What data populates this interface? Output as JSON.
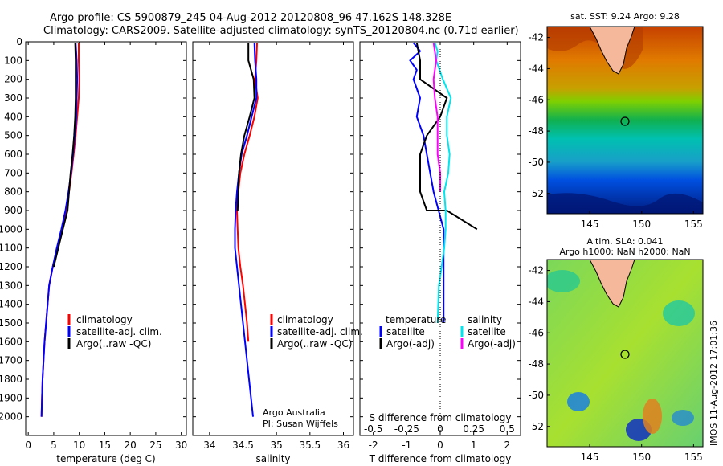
{
  "header": {
    "title1": "Argo profile: CS 5900879_245 04-Aug-2012 20120808_96 47.162S 148.328E",
    "title2": "Climatology: CARS2009. Satellite-adjusted climatology: synTS_20120804.nc (0.71d earlier)"
  },
  "colors": {
    "climatology": "#ff0000",
    "satellite": "#0000ff",
    "argo": "#000000",
    "salinity_satellite": "#00e5ee",
    "salinity_argo": "#ff00ff",
    "land": "#f5b89a"
  },
  "annotations": {
    "credit1": "Argo Australia",
    "credit2": "PI: Susan Wijffels",
    "timestamp": "IMOS 11-Aug-2012 17:01:36"
  },
  "maps": {
    "sst_title": "sat. SST: 9.24  Argo: 9.28",
    "sla_title1": "Altim. SLA: 0.041",
    "sla_title2": "Argo h1000: NaN h2000: NaN",
    "lat_ticks": [
      "-42",
      "-44",
      "-46",
      "-48",
      "-50",
      "-52"
    ],
    "lon_ticks": [
      "145",
      "150",
      "155"
    ],
    "float_lat": -47.162,
    "float_lon": 148.328
  },
  "chart_data": [
    {
      "type": "line",
      "name": "temperature",
      "xlabel": "temperature (deg C)",
      "ylabel": "",
      "xlim": [
        -0.5,
        31
      ],
      "ylim": [
        0,
        2100
      ],
      "xticks": [
        0,
        5,
        10,
        15,
        20,
        25,
        30
      ],
      "yticks": [
        0,
        100,
        200,
        300,
        400,
        500,
        600,
        700,
        800,
        900,
        1000,
        1100,
        1200,
        1300,
        1400,
        1500,
        1600,
        1700,
        1800,
        1900,
        2000
      ],
      "legend": [
        "climatology",
        "satellite-adj. clim.",
        "Argo(..raw -QC)"
      ],
      "series": [
        {
          "name": "climatology",
          "x": [
            9.9,
            9.9,
            10.0,
            9.9,
            9.6,
            9.3,
            8.9,
            8.5,
            8.0,
            7.4,
            6.7,
            5.7,
            4.8,
            4.1,
            3.8,
            3.5,
            3.2,
            3.0,
            2.8,
            2.7,
            2.6
          ],
          "y": [
            5,
            100,
            200,
            300,
            400,
            500,
            600,
            700,
            800,
            900,
            1000,
            1100,
            1200,
            1300,
            1400,
            1500,
            1600,
            1700,
            1800,
            1900,
            2000
          ]
        },
        {
          "name": "satellite-adj. clim.",
          "x": [
            9.3,
            9.5,
            9.6,
            9.5,
            9.4,
            9.1,
            8.8,
            8.4,
            7.9,
            7.3,
            6.5,
            5.6,
            4.8,
            4.1,
            3.8,
            3.5,
            3.2,
            3.0,
            2.8,
            2.7,
            2.6
          ],
          "y": [
            5,
            100,
            200,
            300,
            400,
            500,
            600,
            700,
            800,
            900,
            1000,
            1100,
            1200,
            1300,
            1400,
            1500,
            1600,
            1700,
            1800,
            1900,
            2000
          ]
        },
        {
          "name": "Argo(..raw -QC)",
          "x": [
            9.2,
            9.3,
            9.3,
            9.3,
            9.2,
            9.0,
            8.7,
            8.3,
            8.0,
            7.7,
            6.8,
            5.9,
            5.0
          ],
          "y": [
            5,
            100,
            200,
            300,
            400,
            500,
            600,
            700,
            800,
            900,
            1000,
            1100,
            1200
          ]
        }
      ]
    },
    {
      "type": "line",
      "name": "salinity",
      "xlabel": "salinity",
      "xlim": [
        33.75,
        36.15
      ],
      "ylim": [
        0,
        2100
      ],
      "xticks": [
        34,
        34.5,
        35,
        35.5,
        36
      ],
      "xticklabels": [
        "34",
        "34.5",
        "35",
        "35.5",
        "36"
      ],
      "legend": [
        "climatology",
        "satellite-adj. clim.",
        "Argo(..raw -QC)"
      ],
      "series": [
        {
          "name": "climatology",
          "x": [
            34.71,
            34.7,
            34.68,
            34.72,
            34.67,
            34.6,
            34.52,
            34.46,
            34.43,
            34.41,
            34.42,
            34.43,
            34.46,
            34.5,
            34.53,
            34.56,
            34.58
          ],
          "y": [
            5,
            100,
            200,
            300,
            400,
            500,
            600,
            700,
            800,
            900,
            1000,
            1100,
            1200,
            1300,
            1400,
            1500,
            1600
          ]
        },
        {
          "name": "satellite-adj. clim.",
          "x": [
            34.67,
            34.68,
            34.7,
            34.7,
            34.63,
            34.56,
            34.48,
            34.44,
            34.41,
            34.39,
            34.38,
            34.38,
            34.41,
            34.44,
            34.47,
            34.5,
            34.53,
            34.56,
            34.59,
            34.62,
            34.65
          ],
          "y": [
            5,
            100,
            200,
            300,
            400,
            500,
            600,
            700,
            800,
            900,
            1000,
            1100,
            1200,
            1300,
            1400,
            1500,
            1600,
            1700,
            1800,
            1900,
            2000
          ]
        },
        {
          "name": "Argo(..raw -QC)",
          "x": [
            34.58,
            34.58,
            34.66,
            34.67,
            34.6,
            34.52,
            34.47,
            34.44,
            34.43,
            34.42
          ],
          "y": [
            5,
            100,
            200,
            300,
            400,
            500,
            600,
            700,
            800,
            900
          ]
        }
      ]
    },
    {
      "type": "line",
      "name": "difference",
      "xlabel": "T difference from climatology",
      "xlabel2": "S difference from climatology",
      "xlim": [
        -2.4,
        2.4
      ],
      "ylim": [
        0,
        2100
      ],
      "xticks": [
        -2,
        -1,
        0,
        1,
        2
      ],
      "xticks2": [
        "-0.5",
        "-0.25",
        "0",
        "0.25",
        "0.5"
      ],
      "legend_temperature_title": "temperature",
      "legend_salinity_title": "salinity",
      "legend": [
        "satellite",
        "Argo(-adj)",
        "satellite",
        "Argo(-adj)"
      ],
      "series": [
        {
          "name": "temperature satellite",
          "x": [
            -0.8,
            -0.6,
            -0.9,
            -0.7,
            -0.8,
            -0.6,
            -0.7,
            -0.5,
            -0.4,
            -0.3,
            -0.2,
            0.1,
            0.1,
            0.1,
            0.1,
            0.1
          ],
          "y": [
            5,
            50,
            100,
            150,
            200,
            300,
            400,
            500,
            600,
            700,
            800,
            1000,
            1100,
            1300,
            1400,
            1500
          ]
        },
        {
          "name": "temperature Argo(-adj)",
          "x": [
            -0.7,
            -0.6,
            -0.6,
            0.2,
            0.0,
            -0.4,
            -0.6,
            -0.6,
            -0.6,
            -0.4,
            0.2,
            1.1
          ],
          "y": [
            5,
            100,
            200,
            300,
            400,
            500,
            600,
            700,
            800,
            900,
            900,
            1000
          ]
        },
        {
          "name": "salinity satellite",
          "x": [
            -0.04,
            -0.02,
            -0.03,
            0.02,
            0.08,
            0.05,
            0.05,
            0.07,
            0.06,
            0.03,
            0.04,
            0.04,
            0.03,
            0.01,
            -0.01,
            -0.02
          ],
          "y": [
            5,
            50,
            100,
            200,
            300,
            400,
            500,
            600,
            700,
            800,
            900,
            1000,
            1100,
            1200,
            1300,
            1500
          ]
        },
        {
          "name": "salinity Argo(-adj)",
          "x": [
            -0.05,
            -0.03,
            -0.05,
            -0.04,
            -0.02,
            -0.02,
            -0.02,
            0.0,
            0.0
          ],
          "y": [
            5,
            100,
            200,
            300,
            400,
            500,
            600,
            700,
            800
          ]
        }
      ]
    }
  ]
}
